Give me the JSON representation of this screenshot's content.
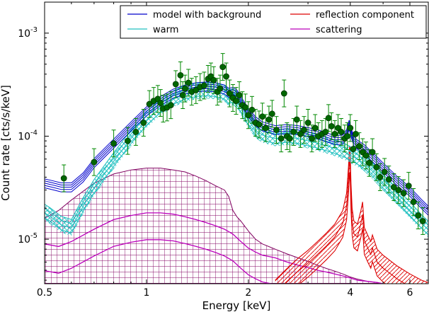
{
  "chart_data": {
    "type": "line",
    "title": "",
    "xlabel": "Energy [keV]",
    "ylabel": "Count rate [cts/s/keV]",
    "x_scale": "log",
    "y_scale": "log",
    "xlim": [
      0.5,
      6.8
    ],
    "ylim": [
      3.7e-06,
      0.002
    ],
    "grid": false,
    "legend_position": "top-right",
    "x_ticks": [
      {
        "value": 0.5,
        "label": "0.5"
      },
      {
        "value": 1,
        "label": "1"
      },
      {
        "value": 2,
        "label": "2"
      },
      {
        "value": 4,
        "label": "4"
      },
      {
        "value": 6,
        "label": "6"
      }
    ],
    "y_ticks": [
      {
        "value": 1e-05,
        "base": "10",
        "exp": "-5"
      },
      {
        "value": 0.0001,
        "base": "10",
        "exp": "-4"
      },
      {
        "value": 0.001,
        "base": "10",
        "exp": "-3"
      }
    ],
    "colors": {
      "model": "#0000cc",
      "warm": "#20c0c0",
      "reflection": "#dd0000",
      "scattering": "#bb00bb",
      "data_fill": "#006600",
      "errorbar": "#008800",
      "hatch_grid": "#800060"
    },
    "series": [
      {
        "name": "model with background",
        "x": [
          0.5,
          0.52,
          0.56,
          0.6,
          0.65,
          0.7,
          0.8,
          0.9,
          1.0,
          1.1,
          1.2,
          1.3,
          1.4,
          1.5,
          1.6,
          1.7,
          1.75,
          1.8,
          1.85,
          1.9,
          2.0,
          2.1,
          2.2,
          2.4,
          2.6,
          2.8,
          3.0,
          3.2,
          3.4,
          3.6,
          3.8,
          3.9,
          3.97,
          4.02,
          4.1,
          4.2,
          4.4,
          4.6,
          4.8,
          5.0,
          5.5,
          6.0,
          6.5,
          6.8
        ],
        "y": [
          3.5e-05,
          3.4e-05,
          3.2e-05,
          3.2e-05,
          4e-05,
          5.5e-05,
          8.5e-05,
          0.000125,
          0.000175,
          0.00022,
          0.00026,
          0.000285,
          0.0003,
          0.000305,
          0.0003,
          0.000285,
          0.000265,
          0.00027,
          0.000255,
          0.00022,
          0.00017,
          0.00014,
          0.000125,
          0.000115,
          0.000118,
          0.000115,
          0.00011,
          0.000105,
          9.8e-05,
          9.2e-05,
          9.3e-05,
          0.000105,
          0.00013,
          0.00011,
          9e-05,
          8.3e-05,
          7.5e-05,
          6.5e-05,
          5.7e-05,
          5e-05,
          3.7e-05,
          2.9e-05,
          2.2e-05,
          1.9e-05
        ]
      },
      {
        "name": "warm",
        "x": [
          0.5,
          0.52,
          0.56,
          0.6,
          0.65,
          0.7,
          0.8,
          0.9,
          1.0,
          1.1,
          1.2,
          1.3,
          1.4,
          1.5,
          1.6,
          1.7,
          1.75,
          1.8,
          1.85,
          1.9,
          2.0,
          2.1,
          2.2,
          2.4,
          2.6,
          2.8,
          3.0,
          3.2,
          3.4,
          3.6,
          3.8,
          3.9,
          3.97,
          4.02,
          4.1,
          4.2,
          4.4,
          4.6,
          4.8,
          5.0,
          5.5,
          6.0,
          6.5,
          6.8
        ],
        "y": [
          1.9e-05,
          1.75e-05,
          1.45e-05,
          1.35e-05,
          2.2e-05,
          3.3e-05,
          6e-05,
          0.0001,
          0.00015,
          0.0002,
          0.00024,
          0.00027,
          0.000285,
          0.00029,
          0.000285,
          0.00027,
          0.000245,
          0.00025,
          0.000235,
          0.0002,
          0.00015,
          0.00012,
          0.000108,
          0.0001,
          0.000103,
          0.0001,
          9.5e-05,
          9e-05,
          8.5e-05,
          8e-05,
          7.5e-05,
          7.2e-05,
          7e-05,
          6.8e-05,
          6.6e-05,
          6.3e-05,
          5.7e-05,
          5e-05,
          4.3e-05,
          3.7e-05,
          2.7e-05,
          2e-05,
          1.5e-05,
          1.3e-05
        ]
      },
      {
        "name": "reflection component",
        "x": [
          2.4,
          2.6,
          2.8,
          3.0,
          3.2,
          3.4,
          3.6,
          3.8,
          3.9,
          3.95,
          3.98,
          4.0,
          4.02,
          4.05,
          4.1,
          4.2,
          4.3,
          4.35,
          4.4,
          4.5,
          4.6,
          4.65,
          4.8,
          5.0,
          5.5,
          6.0,
          6.5,
          6.8
        ],
        "y": [
          4e-06,
          5.2e-06,
          6.5e-06,
          7.8e-06,
          9.5e-06,
          1.15e-05,
          1.4e-05,
          1.9e-05,
          2.8e-05,
          5e-05,
          8e-05,
          6.5e-05,
          3.5e-05,
          2e-05,
          1.5e-05,
          1.4e-05,
          1.9e-05,
          2.3e-05,
          1.3e-05,
          1.1e-05,
          9.5e-06,
          1.1e-05,
          8e-06,
          7e-06,
          5.5e-06,
          4.6e-06,
          4e-06,
          3.8e-06
        ]
      },
      {
        "name": "scattering",
        "x": [
          0.5,
          0.55,
          0.6,
          0.7,
          0.8,
          0.9,
          1.0,
          1.1,
          1.2,
          1.3,
          1.4,
          1.5,
          1.6,
          1.7,
          1.8,
          1.9,
          2.0,
          2.1,
          2.2,
          2.4,
          2.6,
          2.8,
          3.0,
          3.2,
          3.4,
          3.6,
          3.8,
          4.0,
          4.2,
          4.5,
          4.8,
          5.0
        ],
        "y": [
          9e-06,
          8.5e-06,
          9.5e-06,
          1.25e-05,
          1.55e-05,
          1.7e-05,
          1.8e-05,
          1.8e-05,
          1.75e-05,
          1.65e-05,
          1.55e-05,
          1.45e-05,
          1.35e-05,
          1.25e-05,
          1.12e-05,
          9.5e-06,
          8.2e-06,
          7.5e-06,
          7e-06,
          6.6e-06,
          6e-06,
          5.6e-06,
          5.3e-06,
          5e-06,
          4.8e-06,
          4.6e-06,
          4.4e-06,
          4.2e-06,
          4e-06,
          3.9e-06,
          3.8e-06,
          3.7e-06
        ]
      }
    ],
    "grid_band": {
      "x": [
        0.5,
        0.55,
        0.6,
        0.7,
        0.8,
        0.9,
        1.0,
        1.1,
        1.2,
        1.3,
        1.4,
        1.5,
        1.6,
        1.7,
        1.75,
        1.8,
        1.85,
        1.9,
        2.0,
        2.1,
        2.2,
        2.4,
        2.6,
        2.8,
        3.0,
        3.2,
        3.4,
        3.6,
        3.8,
        4.0,
        4.2,
        4.5,
        4.8,
        5.0
      ],
      "y": [
        1.6e-05,
        1.9e-05,
        2.4e-05,
        3.5e-05,
        4.3e-05,
        4.7e-05,
        4.9e-05,
        4.9e-05,
        4.7e-05,
        4.5e-05,
        4.1e-05,
        3.7e-05,
        3.3e-05,
        3e-05,
        2.6e-05,
        1.9e-05,
        1.65e-05,
        1.5e-05,
        1.2e-05,
        1e-05,
        9e-06,
        8e-06,
        7.2e-06,
        6.6e-06,
        6.1e-06,
        5.6e-06,
        5.2e-06,
        4.9e-06,
        4.6e-06,
        4.3e-06,
        4.1e-06,
        3.9e-06,
        3.8e-06,
        3.7e-06
      ]
    },
    "data_points": {
      "x": [
        0.57,
        0.7,
        0.8,
        0.88,
        0.93,
        0.98,
        1.02,
        1.05,
        1.08,
        1.1,
        1.12,
        1.15,
        1.18,
        1.22,
        1.26,
        1.28,
        1.3,
        1.33,
        1.36,
        1.4,
        1.44,
        1.48,
        1.52,
        1.55,
        1.58,
        1.62,
        1.65,
        1.68,
        1.72,
        1.76,
        1.8,
        1.84,
        1.88,
        1.92,
        1.96,
        2.0,
        2.05,
        2.1,
        2.15,
        2.2,
        2.25,
        2.3,
        2.35,
        2.42,
        2.5,
        2.55,
        2.6,
        2.65,
        2.72,
        2.78,
        2.85,
        2.92,
        3.0,
        3.08,
        3.15,
        3.22,
        3.3,
        3.38,
        3.45,
        3.52,
        3.6,
        3.68,
        3.76,
        3.85,
        3.92,
        4.0,
        4.08,
        4.15,
        4.25,
        4.35,
        4.45,
        4.55,
        4.65,
        4.78,
        4.9,
        5.05,
        5.2,
        5.38,
        5.55,
        5.75,
        5.95,
        6.15,
        6.35,
        6.55
      ],
      "y": [
        3.9e-05,
        5.6e-05,
        8.5e-05,
        9e-05,
        0.00011,
        0.000135,
        0.000205,
        0.00022,
        0.00023,
        0.00021,
        0.000185,
        0.00019,
        0.0002,
        0.00032,
        0.00039,
        0.00025,
        0.00029,
        0.00033,
        0.00027,
        0.00028,
        0.0003,
        0.00031,
        0.00036,
        0.00038,
        0.00035,
        0.00027,
        0.00029,
        0.00047,
        0.00038,
        0.00026,
        0.000235,
        0.00022,
        0.00025,
        0.0002,
        0.00019,
        0.00016,
        0.00018,
        0.000135,
        0.00013,
        0.000155,
        0.00012,
        0.000145,
        0.000165,
        0.000115,
        9.5e-05,
        0.00026,
        0.0001,
        9.5e-05,
        0.00011,
        0.000145,
        0.000105,
        0.000115,
        0.000135,
        9.5e-05,
        0.00012,
        0.0001,
        0.000105,
        0.00011,
        0.00015,
        0.000125,
        0.000105,
        0.00012,
        0.00011,
        9.5e-05,
        0.0001,
        0.00012,
        7.5e-05,
        0.000105,
        8e-05,
        7e-05,
        6.5e-05,
        5.5e-05,
        7e-05,
        5e-05,
        4e-05,
        4.5e-05,
        3.8e-05,
        3.2e-05,
        3e-05,
        2.8e-05,
        3.3e-05,
        2.3e-05,
        1.7e-05,
        1.5e-05
      ]
    },
    "legend": [
      {
        "label": "model with background",
        "series": "model",
        "column": 0,
        "row": 0
      },
      {
        "label": "warm",
        "series": "warm",
        "column": 0,
        "row": 1
      },
      {
        "label": "reflection component",
        "series": "reflection",
        "column": 1,
        "row": 0
      },
      {
        "label": "scattering",
        "series": "scattering",
        "column": 1,
        "row": 1
      }
    ]
  }
}
